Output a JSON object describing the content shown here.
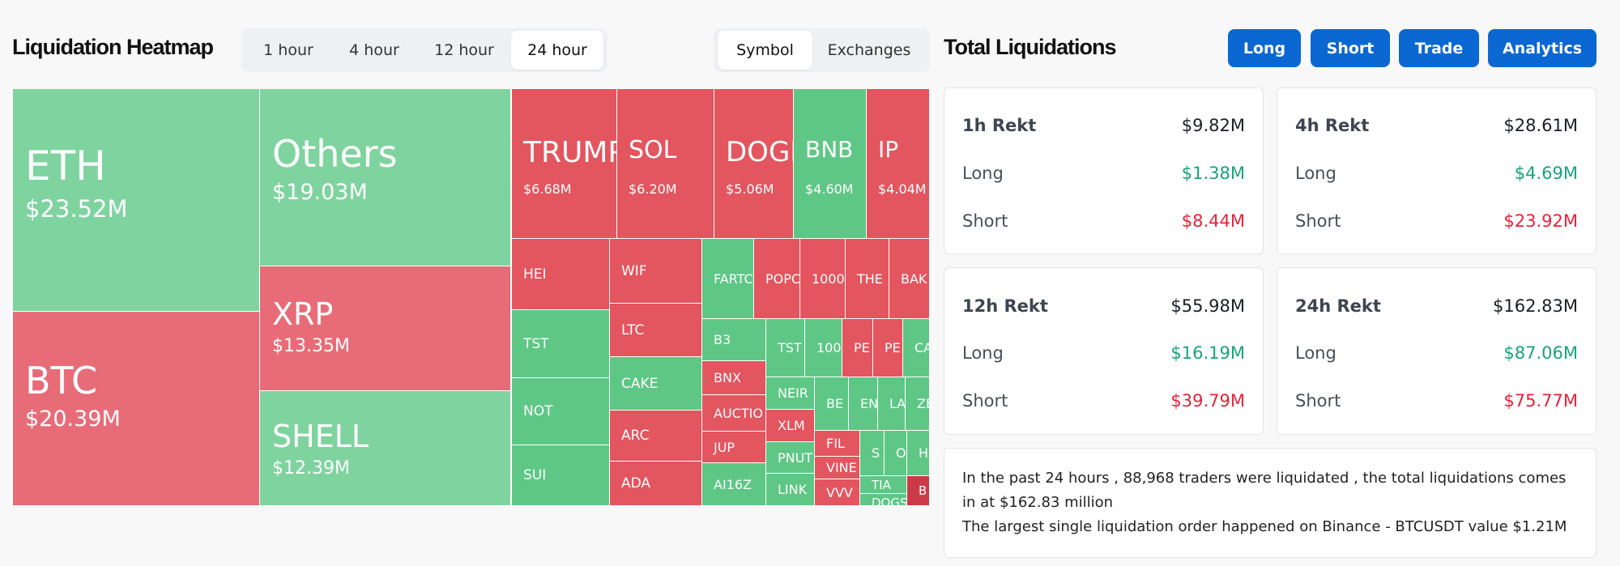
{
  "heatmap": {
    "title": "Liquidation Heatmap",
    "time_tabs": [
      {
        "label": "1 hour",
        "active": false
      },
      {
        "label": "4 hour",
        "active": false
      },
      {
        "label": "12 hour",
        "active": false
      },
      {
        "label": "24 hour",
        "active": true
      }
    ],
    "view_tabs": [
      {
        "label": "Symbol",
        "active": true
      },
      {
        "label": "Exchanges",
        "active": false
      }
    ],
    "tiles": [
      {
        "symbol": "ETH",
        "value": "$23.52M",
        "side": "long"
      },
      {
        "symbol": "BTC",
        "value": "$20.39M",
        "side": "short"
      },
      {
        "symbol": "Others",
        "value": "$19.03M",
        "side": "long"
      },
      {
        "symbol": "XRP",
        "value": "$13.35M",
        "side": "short"
      },
      {
        "symbol": "SHELL",
        "value": "$12.39M",
        "side": "long"
      },
      {
        "symbol": "TRUMP",
        "value": "$6.68M",
        "side": "short"
      },
      {
        "symbol": "SOL",
        "value": "$6.20M",
        "side": "short"
      },
      {
        "symbol": "DOGE",
        "value": "$5.06M",
        "side": "short"
      },
      {
        "symbol": "BNB",
        "value": "$4.60M",
        "side": "long"
      },
      {
        "symbol": "IP",
        "value": "$4.04M",
        "side": "short"
      },
      {
        "symbol": "HEI",
        "side": "short"
      },
      {
        "symbol": "WIF",
        "side": "short"
      },
      {
        "symbol": "FARTC",
        "side": "long"
      },
      {
        "symbol": "POPC",
        "side": "short"
      },
      {
        "symbol": "1000",
        "side": "short"
      },
      {
        "symbol": "THE",
        "side": "short"
      },
      {
        "symbol": "BAK",
        "side": "short"
      },
      {
        "symbol": "TST",
        "side": "long"
      },
      {
        "symbol": "LTC",
        "side": "short"
      },
      {
        "symbol": "B3",
        "side": "long"
      },
      {
        "symbol": "TST",
        "side": "long"
      },
      {
        "symbol": "100",
        "side": "long"
      },
      {
        "symbol": "PE",
        "side": "short"
      },
      {
        "symbol": "PE",
        "side": "short"
      },
      {
        "symbol": "CA",
        "side": "long"
      },
      {
        "symbol": "CAKE",
        "side": "long"
      },
      {
        "symbol": "BNX",
        "side": "short"
      },
      {
        "symbol": "NEIR",
        "side": "long"
      },
      {
        "symbol": "BE",
        "side": "long"
      },
      {
        "symbol": "EN",
        "side": "long"
      },
      {
        "symbol": "LA",
        "side": "long"
      },
      {
        "symbol": "ZE",
        "side": "long"
      },
      {
        "symbol": "NOT",
        "side": "long"
      },
      {
        "symbol": "AUCTIO",
        "side": "short"
      },
      {
        "symbol": "XLM",
        "side": "short"
      },
      {
        "symbol": "ARC",
        "side": "short"
      },
      {
        "symbol": "FIL",
        "side": "short"
      },
      {
        "symbol": "S",
        "side": "long"
      },
      {
        "symbol": "O",
        "side": "long"
      },
      {
        "symbol": "H",
        "side": "long"
      },
      {
        "symbol": "JUP",
        "side": "short"
      },
      {
        "symbol": "PNUT",
        "side": "long"
      },
      {
        "symbol": "VINE",
        "side": "short"
      },
      {
        "symbol": "TIA",
        "side": "long"
      },
      {
        "symbol": "SUI",
        "side": "long"
      },
      {
        "symbol": "ADA",
        "side": "short"
      },
      {
        "symbol": "AI16Z",
        "side": "long"
      },
      {
        "symbol": "LINK",
        "side": "long"
      },
      {
        "symbol": "VVV",
        "side": "short"
      },
      {
        "symbol": "DOGS",
        "side": "long"
      },
      {
        "symbol": "B",
        "side": "short"
      }
    ]
  },
  "totals": {
    "title": "Total Liquidations",
    "buttons": [
      "Long",
      "Short",
      "Trade",
      "Analytics"
    ],
    "cards": [
      {
        "label": "1h Rekt",
        "total": "$9.82M",
        "long_label": "Long",
        "long": "$1.38M",
        "short_label": "Short",
        "short": "$8.44M"
      },
      {
        "label": "4h Rekt",
        "total": "$28.61M",
        "long_label": "Long",
        "long": "$4.69M",
        "short_label": "Short",
        "short": "$23.92M"
      },
      {
        "label": "12h Rekt",
        "total": "$55.98M",
        "long_label": "Long",
        "long": "$16.19M",
        "short_label": "Short",
        "short": "$39.79M"
      },
      {
        "label": "24h Rekt",
        "total": "$162.83M",
        "long_label": "Long",
        "long": "$87.06M",
        "short_label": "Short",
        "short": "$75.77M"
      }
    ],
    "summary_line1": "In the past 24 hours , 88,968 traders were liquidated , the total liquidations comes in at $162.83 million",
    "summary_line2": "The largest single liquidation order happened on Binance - BTCUSDT value $1.21M"
  },
  "colors": {
    "long": "#7fd39f",
    "long_strong": "#5ec785",
    "short": "#e76c78",
    "short_strong": "#e3555f",
    "accent": "#0b67d1",
    "green_text": "#17a37a",
    "red_text": "#e8213b"
  }
}
